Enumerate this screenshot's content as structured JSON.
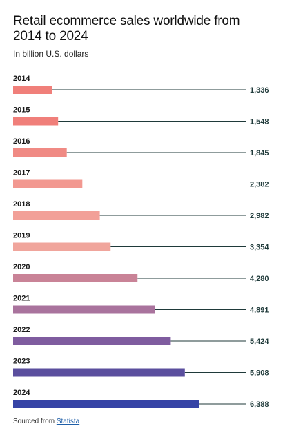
{
  "chart_data": {
    "type": "bar",
    "title": "Retail ecommerce sales worldwide from 2014 to 2024",
    "subtitle": "In billion U.S. dollars",
    "categories": [
      "2014",
      "2015",
      "2016",
      "2017",
      "2018",
      "2019",
      "2020",
      "2021",
      "2022",
      "2023",
      "2024"
    ],
    "values": [
      1336,
      1548,
      1845,
      2382,
      2982,
      3354,
      4280,
      4891,
      5424,
      5908,
      6388
    ],
    "value_labels": [
      "1,336",
      "1,548",
      "1,845",
      "2,382",
      "2,982",
      "3,354",
      "4,280",
      "4,891",
      "5,424",
      "5,908",
      "6,388"
    ],
    "orientation": "horizontal",
    "xlim": [
      0,
      6388
    ],
    "grid": false,
    "colors": [
      "#f07f7a",
      "#f07f7a",
      "#f08a84",
      "#f29890",
      "#f2a098",
      "#f0a59c",
      "#c98397",
      "#a9739d",
      "#7f5c9f",
      "#5b4f9e",
      "#3644a6"
    ]
  },
  "source": {
    "prefix": "Sourced from",
    "link": "Statista"
  }
}
